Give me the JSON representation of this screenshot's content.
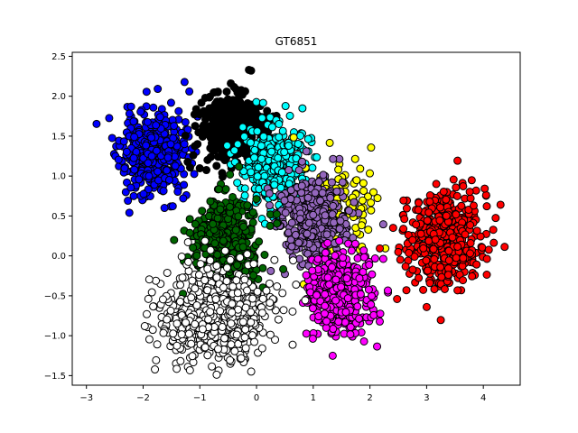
{
  "chart_data": {
    "type": "scatter",
    "title": "GT6851",
    "xlabel": "",
    "ylabel": "",
    "xlim": [
      -3.25,
      4.65
    ],
    "ylim": [
      -1.62,
      2.55
    ],
    "xticks": [
      -3,
      -2,
      -1,
      0,
      1,
      2,
      3,
      4
    ],
    "yticks": [
      -1.5,
      -1.0,
      -0.5,
      0.0,
      0.5,
      1.0,
      1.5,
      2.0,
      2.5
    ],
    "xtick_labels": [
      "−3",
      "−2",
      "−1",
      "0",
      "1",
      "2",
      "3",
      "4"
    ],
    "ytick_labels": [
      "−1.5",
      "−1.0",
      "−0.5",
      "0.0",
      "0.5",
      "1.0",
      "1.5",
      "2.0",
      "2.5"
    ],
    "grid": false,
    "legend": "none",
    "marker_edge_color": "#000000",
    "series": [
      {
        "color": "#0000ff",
        "center": [
          -1.85,
          1.28
        ],
        "spread": [
          0.28,
          0.26
        ],
        "count": 420,
        "seed": 11
      },
      {
        "color": "#000000",
        "center": [
          -0.45,
          1.6
        ],
        "spread": [
          0.28,
          0.22
        ],
        "count": 420,
        "seed": 23
      },
      {
        "color": "#00ffff",
        "center": [
          0.35,
          1.12
        ],
        "spread": [
          0.3,
          0.26
        ],
        "count": 380,
        "seed": 37
      },
      {
        "color": "#ffff00",
        "center": [
          1.5,
          0.65
        ],
        "spread": [
          0.33,
          0.3
        ],
        "count": 120,
        "seed": 41
      },
      {
        "color": "#ff0000",
        "center": [
          3.3,
          0.22
        ],
        "spread": [
          0.33,
          0.3
        ],
        "count": 460,
        "seed": 53
      },
      {
        "color": "#9467bd",
        "center": [
          1.0,
          0.45
        ],
        "spread": [
          0.3,
          0.27
        ],
        "count": 380,
        "seed": 67
      },
      {
        "color": "#006400",
        "center": [
          -0.55,
          0.2
        ],
        "spread": [
          0.3,
          0.28
        ],
        "count": 420,
        "seed": 71
      },
      {
        "color": "#ff00ff",
        "center": [
          1.45,
          -0.45
        ],
        "spread": [
          0.3,
          0.28
        ],
        "count": 400,
        "seed": 83
      },
      {
        "color": "#ffffff",
        "center": [
          -0.7,
          -0.75
        ],
        "spread": [
          0.48,
          0.3
        ],
        "count": 650,
        "seed": 97
      }
    ]
  }
}
